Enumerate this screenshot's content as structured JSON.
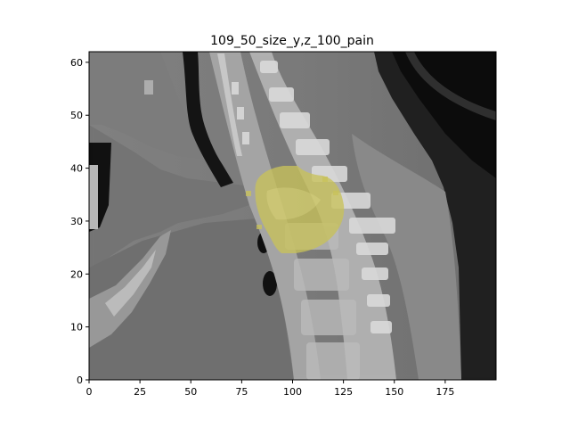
{
  "figure": {
    "title": "109_50_size_y,z_100_pain"
  },
  "axes": {
    "x_ticks": [
      0,
      25,
      50,
      75,
      100,
      125,
      150,
      175
    ],
    "y_ticks": [
      0,
      10,
      20,
      30,
      40,
      50,
      60
    ],
    "xlim": [
      0,
      200
    ],
    "ylim": [
      0,
      62
    ]
  },
  "image": {
    "content": "sagittal CT slice of neck and cervical spine",
    "overlay_color": "#c8c25a",
    "overlay_label": "pain"
  }
}
